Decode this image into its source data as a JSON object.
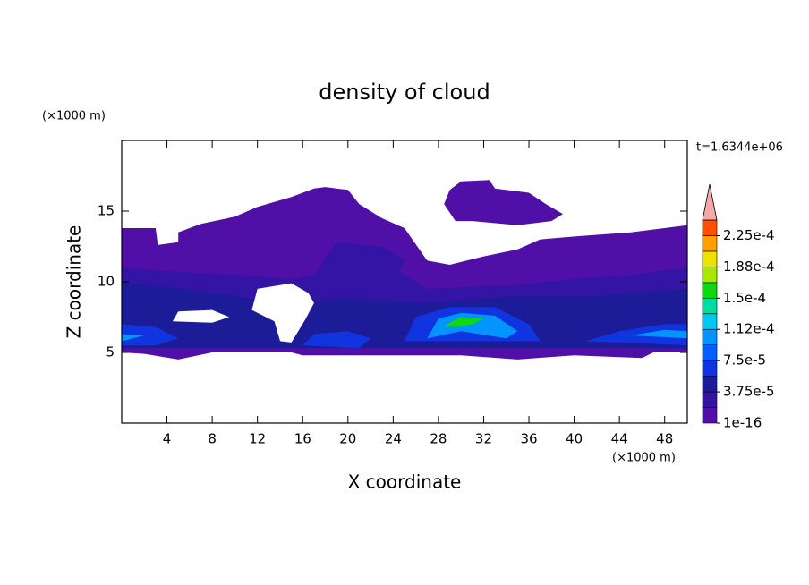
{
  "chart_data": {
    "type": "contour",
    "title": "density of cloud",
    "x_label": "X coordinate",
    "y_label": "Z coordinate",
    "x_unit": "(×1000 m)",
    "y_unit": "(×1000 m)",
    "time_label": "t=1.6344e+06",
    "xlim": [
      0,
      50
    ],
    "ylim": [
      0,
      20
    ],
    "xticks": [
      4,
      8,
      12,
      16,
      20,
      24,
      28,
      32,
      36,
      40,
      44,
      48
    ],
    "yticks": [
      5,
      10,
      15
    ],
    "levels": [
      1e-16,
      1.875e-05,
      3.75e-05,
      5.625e-05,
      7.5e-05,
      9.375e-05,
      0.0001125,
      0.00013125,
      0.00015,
      0.00016875,
      0.0001875,
      0.00020625,
      0.000225,
      0.00024375
    ],
    "colors": [
      "#5010a8",
      "#3414a4",
      "#1c1c98",
      "#1034e0",
      "#0060ff",
      "#0094ff",
      "#00c8f0",
      "#00dca0",
      "#10d810",
      "#a8e800",
      "#f0e000",
      "#ffa000",
      "#ff5000"
    ],
    "extend_color": "#f4a8a8",
    "colorbar_ticks": [
      {
        "value": 1e-16,
        "label": "1e-16"
      },
      {
        "value": 3.75e-05,
        "label": "3.75e-5"
      },
      {
        "value": 7.5e-05,
        "label": "7.5e-5"
      },
      {
        "value": 0.0001125,
        "label": "1.12e-4"
      },
      {
        "value": 0.00015,
        "label": "1.5e-4"
      },
      {
        "value": 0.0001875,
        "label": "1.88e-4"
      },
      {
        "value": 0.000225,
        "label": "2.25e-4"
      }
    ],
    "regions": [
      {
        "value": 1e-16,
        "points": [
          [
            0,
            5
          ],
          [
            0,
            13.8
          ],
          [
            3,
            13.8
          ],
          [
            3.2,
            12.6
          ],
          [
            5,
            12.8
          ],
          [
            5,
            13.5
          ],
          [
            7,
            14.1
          ],
          [
            10,
            14.6
          ],
          [
            12,
            15.3
          ],
          [
            15,
            16
          ],
          [
            17,
            16.6
          ],
          [
            18,
            16.7
          ],
          [
            20,
            16.5
          ],
          [
            21,
            15.5
          ],
          [
            23,
            14.5
          ],
          [
            25,
            13.8
          ],
          [
            27,
            11.5
          ],
          [
            29,
            11.2
          ],
          [
            32,
            11.8
          ],
          [
            35,
            12.3
          ],
          [
            37,
            13
          ],
          [
            40,
            13.2
          ],
          [
            45,
            13.5
          ],
          [
            50,
            14
          ],
          [
            50,
            5
          ],
          [
            47,
            5
          ],
          [
            46,
            4.6
          ],
          [
            40,
            4.8
          ],
          [
            35,
            4.5
          ],
          [
            30,
            4.8
          ],
          [
            16,
            4.8
          ],
          [
            15,
            5
          ],
          [
            8,
            5
          ],
          [
            5,
            4.5
          ],
          [
            2,
            4.9
          ]
        ]
      },
      {
        "value": 1e-16,
        "points": [
          [
            29.5,
            14.3
          ],
          [
            28.5,
            15.5
          ],
          [
            29,
            16.5
          ],
          [
            30,
            17.1
          ],
          [
            32.5,
            17.2
          ],
          [
            33,
            16.6
          ],
          [
            36,
            16.3
          ],
          [
            37.5,
            15.5
          ],
          [
            39,
            14.8
          ],
          [
            38,
            14.3
          ],
          [
            35,
            14
          ],
          [
            31,
            14.3
          ]
        ]
      },
      {
        "value": 1.875e-05,
        "points": [
          [
            0,
            11
          ],
          [
            5,
            10.7
          ],
          [
            10,
            10.5
          ],
          [
            15,
            10.2
          ],
          [
            20,
            10.8
          ],
          [
            23,
            11.3
          ],
          [
            25,
            10.5
          ],
          [
            27,
            9.5
          ],
          [
            35,
            9.8
          ],
          [
            40,
            10.2
          ],
          [
            45,
            10.5
          ],
          [
            50,
            11
          ],
          [
            50,
            5.3
          ],
          [
            0,
            5.3
          ]
        ]
      },
      {
        "value": 1.875e-05,
        "points": [
          [
            17,
            10.5
          ],
          [
            19,
            12.8
          ],
          [
            23,
            12.5
          ],
          [
            25,
            11.5
          ],
          [
            24,
            10
          ]
        ]
      },
      {
        "value": 3.75e-05,
        "points": [
          [
            0,
            10
          ],
          [
            5,
            9.5
          ],
          [
            10,
            9
          ],
          [
            14,
            8.5
          ],
          [
            20,
            8.8
          ],
          [
            27,
            8.5
          ],
          [
            35,
            9
          ],
          [
            42,
            9
          ],
          [
            50,
            9.5
          ],
          [
            50,
            5.3
          ],
          [
            0,
            5.3
          ]
        ]
      },
      {
        "value": 5.625e-05,
        "points": [
          [
            25,
            5.8
          ],
          [
            26,
            7.5
          ],
          [
            29,
            8.2
          ],
          [
            33,
            8.2
          ],
          [
            36,
            7
          ],
          [
            37,
            5.8
          ]
        ]
      },
      {
        "value": 5.625e-05,
        "points": [
          [
            0,
            5.5
          ],
          [
            0,
            7
          ],
          [
            3,
            6.8
          ],
          [
            5,
            6
          ],
          [
            3,
            5.5
          ]
        ]
      },
      {
        "value": 5.625e-05,
        "points": [
          [
            16,
            5.5
          ],
          [
            17,
            6.3
          ],
          [
            20,
            6.5
          ],
          [
            22,
            6
          ],
          [
            21,
            5.3
          ]
        ]
      },
      {
        "value": 5.625e-05,
        "points": [
          [
            41,
            5.8
          ],
          [
            44,
            6.5
          ],
          [
            48,
            7
          ],
          [
            50,
            7
          ],
          [
            50,
            5.5
          ]
        ]
      },
      {
        "value": 9.375e-05,
        "points": [
          [
            27,
            6
          ],
          [
            28,
            7.4
          ],
          [
            30,
            7.8
          ],
          [
            33,
            7.6
          ],
          [
            35,
            6.5
          ],
          [
            34,
            6
          ],
          [
            30,
            6.5
          ]
        ]
      },
      {
        "value": 9.375e-05,
        "points": [
          [
            0,
            5.8
          ],
          [
            0,
            6.3
          ],
          [
            2,
            6.2
          ]
        ]
      },
      {
        "value": 9.375e-05,
        "points": [
          [
            45,
            6.2
          ],
          [
            48,
            6.6
          ],
          [
            50,
            6.5
          ],
          [
            50,
            6
          ]
        ]
      },
      {
        "value": 0.00015,
        "points": [
          [
            28.5,
            6.9
          ],
          [
            30,
            7.5
          ],
          [
            32,
            7.4
          ],
          [
            31,
            7
          ],
          [
            29.5,
            6.8
          ]
        ]
      }
    ],
    "holes": [
      [
        [
          11.5,
          8
        ],
        [
          12,
          9.5
        ],
        [
          15,
          9.9
        ],
        [
          16.5,
          9.2
        ],
        [
          17,
          8.5
        ],
        [
          16.2,
          7.3
        ],
        [
          15,
          5.7
        ],
        [
          14,
          5.8
        ],
        [
          13.5,
          7.2
        ]
      ],
      [
        [
          4.5,
          7.2
        ],
        [
          5,
          7.9
        ],
        [
          8,
          8
        ],
        [
          9.5,
          7.5
        ],
        [
          8,
          7.1
        ]
      ]
    ]
  }
}
